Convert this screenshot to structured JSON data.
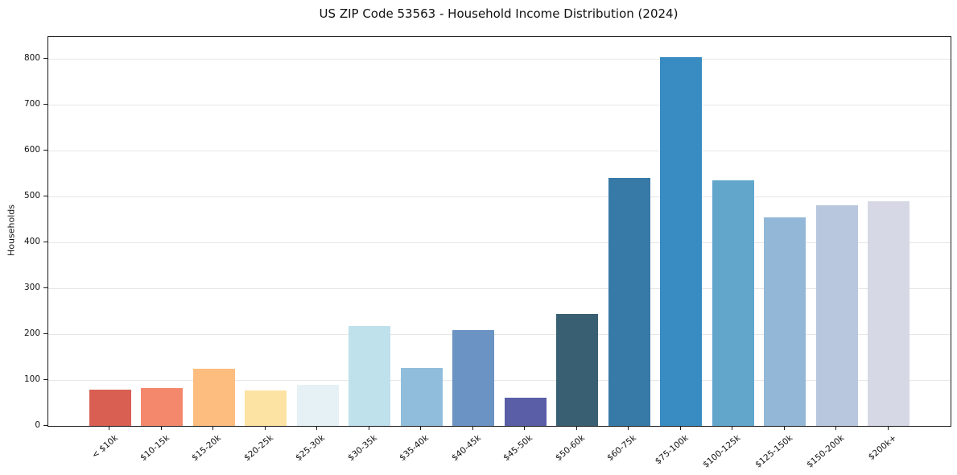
{
  "chart_data": {
    "type": "bar",
    "title": "US ZIP Code 53563 - Household Income Distribution (2024)",
    "xlabel": "",
    "ylabel": "Households",
    "categories": [
      "< $10k",
      "$10-15k",
      "$15-20k",
      "$20-25k",
      "$25-30k",
      "$30-35k",
      "$35-40k",
      "$40-45k",
      "$45-50k",
      "$50-60k",
      "$60-75k",
      "$75-100k",
      "$100-125k",
      "$125-150k",
      "$150-200k",
      "$200k+"
    ],
    "values": [
      79,
      82,
      125,
      78,
      90,
      218,
      127,
      209,
      62,
      244,
      541,
      805,
      536,
      456,
      481,
      491
    ],
    "bar_colors": [
      "#d85f52",
      "#f4886d",
      "#fcbd7f",
      "#fde3a3",
      "#e5f1f5",
      "#bfe1ec",
      "#91bddc",
      "#6b93c3",
      "#5a5ea7",
      "#386072",
      "#377aa7",
      "#398cc2",
      "#62a6cc",
      "#93b8d7",
      "#b8c7dd",
      "#d6d8e5"
    ],
    "ylim": [
      0,
      849
    ],
    "yticks": [
      0,
      100,
      200,
      300,
      400,
      500,
      600,
      700,
      800
    ],
    "grid": "horizontal",
    "legend": "none",
    "colors": {
      "background": "#ffffff",
      "gridline": "#e7e7e7",
      "spine": "#1a1a1a",
      "text": "#111111"
    }
  }
}
